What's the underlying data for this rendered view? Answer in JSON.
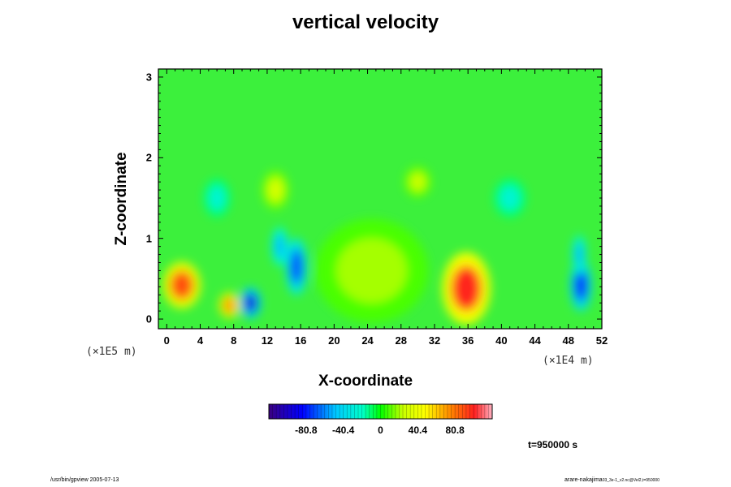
{
  "chart_data": {
    "type": "heatmap",
    "title": "vertical velocity",
    "xlabel": "X-coordinate",
    "ylabel": "Z-coordinate",
    "x_unit": "(×1E4 m)",
    "y_unit": "(×1E5 m)",
    "xlim": [
      -1,
      52
    ],
    "ylim": [
      -0.12,
      3.1
    ],
    "x_ticks": [
      "0",
      "4",
      "8",
      "12",
      "16",
      "20",
      "24",
      "28",
      "32",
      "36",
      "40",
      "44",
      "48",
      "52"
    ],
    "y_ticks": [
      "0",
      "1",
      "2",
      "3"
    ],
    "colorbar": {
      "ticks": [
        "-80.8",
        "-40.4",
        "0",
        "40.4",
        "80.8"
      ],
      "tick_values": [
        -80.8,
        -40.4,
        0,
        40.4,
        80.8
      ],
      "range": [
        -121.2,
        121.2
      ]
    },
    "features": [
      {
        "x": 1.8,
        "z": 0.42,
        "value": 90,
        "rx": 1.4,
        "rz": 0.18
      },
      {
        "x": 7.5,
        "z": 0.17,
        "value": 70,
        "rx": 0.8,
        "rz": 0.1
      },
      {
        "x": 10,
        "z": 0.2,
        "value": -95,
        "rx": 0.8,
        "rz": 0.12
      },
      {
        "x": 15.5,
        "z": 0.65,
        "value": -70,
        "rx": 0.8,
        "rz": 0.22
      },
      {
        "x": 13.5,
        "z": 0.9,
        "value": -50,
        "rx": 0.6,
        "rz": 0.15
      },
      {
        "x": 24.5,
        "z": 0.6,
        "value": 20,
        "rx": 4.2,
        "rz": 0.4
      },
      {
        "x": 35.8,
        "z": 0.38,
        "value": 100,
        "rx": 1.8,
        "rz": 0.28
      },
      {
        "x": 49.5,
        "z": 0.42,
        "value": -80,
        "rx": 0.8,
        "rz": 0.2
      },
      {
        "x": 49.3,
        "z": 0.8,
        "value": -50,
        "rx": 0.5,
        "rz": 0.15
      },
      {
        "x": 13,
        "z": 1.6,
        "value": 30,
        "rx": 1.0,
        "rz": 0.15
      },
      {
        "x": 30,
        "z": 1.7,
        "value": 25,
        "rx": 1.0,
        "rz": 0.12
      },
      {
        "x": 6,
        "z": 1.5,
        "value": -25,
        "rx": 1.0,
        "rz": 0.15
      },
      {
        "x": 41,
        "z": 1.5,
        "value": -25,
        "rx": 1.2,
        "rz": 0.15
      }
    ]
  },
  "time_label": "t=950000 s",
  "footer_left": "/usr/bin/gpview 2005-07-13",
  "footer_right": "arare-nakajima",
  "footer_right_small": "03_3e-1_v2.nc@Vel2,t=950000"
}
